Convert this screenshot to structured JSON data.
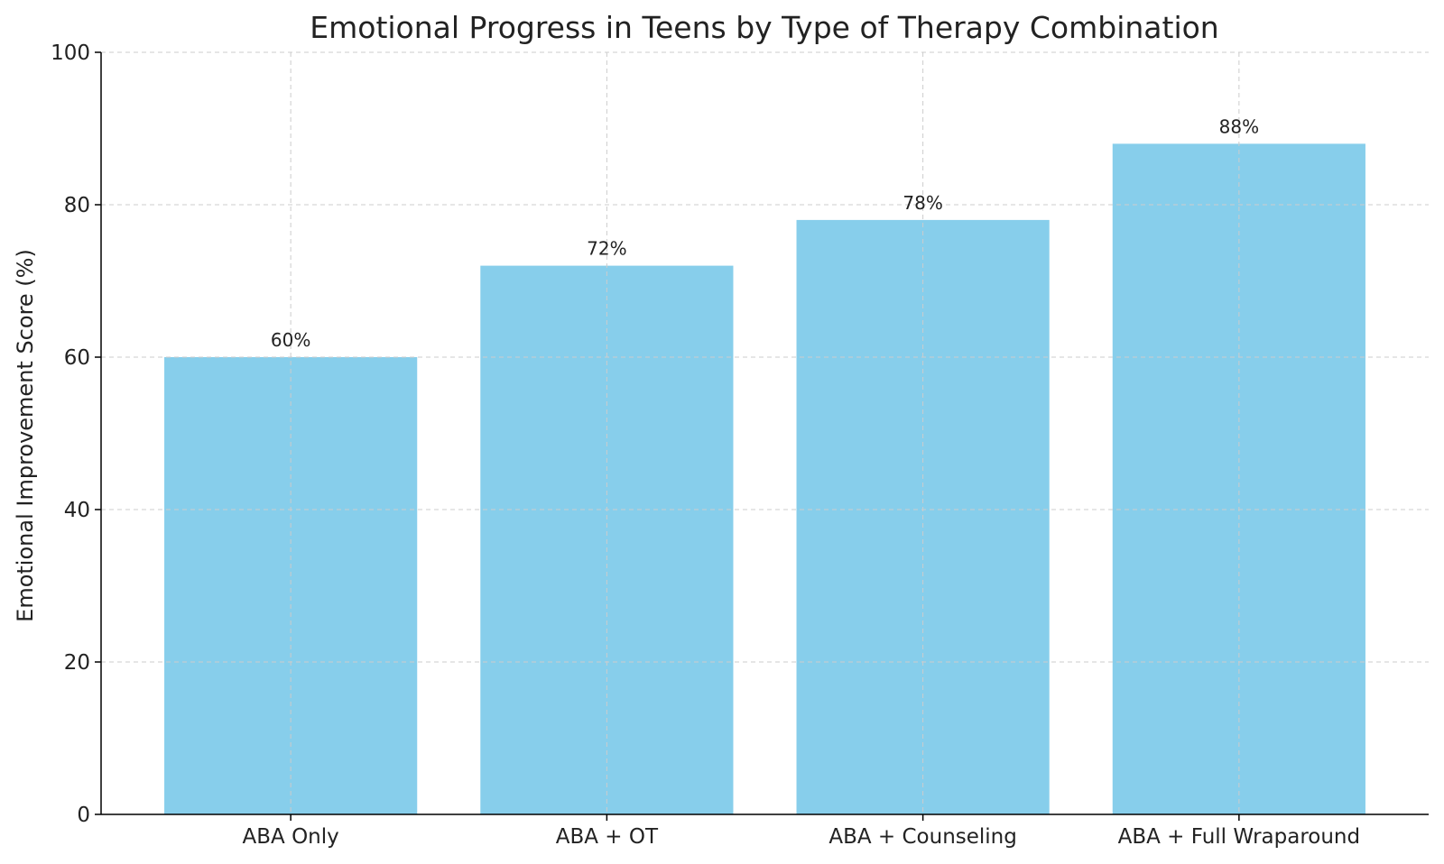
{
  "chart_data": {
    "type": "bar",
    "title": "Emotional Progress in Teens by Type of Therapy Combination",
    "xlabel": "",
    "ylabel": "Emotional Improvement Score (%)",
    "categories": [
      "ABA Only",
      "ABA + OT",
      "ABA + Counseling",
      "ABA + Full Wraparound"
    ],
    "values": [
      60,
      72,
      78,
      88
    ],
    "data_labels": [
      "60%",
      "72%",
      "78%",
      "88%"
    ],
    "ylim": [
      0,
      100
    ],
    "yticks": [
      0,
      20,
      40,
      60,
      80,
      100
    ],
    "grid": true,
    "legend": "none",
    "colors": {
      "bar": "#87CEEB",
      "grid": "#cccccc",
      "axis": "#000000",
      "text": "#222222"
    }
  }
}
